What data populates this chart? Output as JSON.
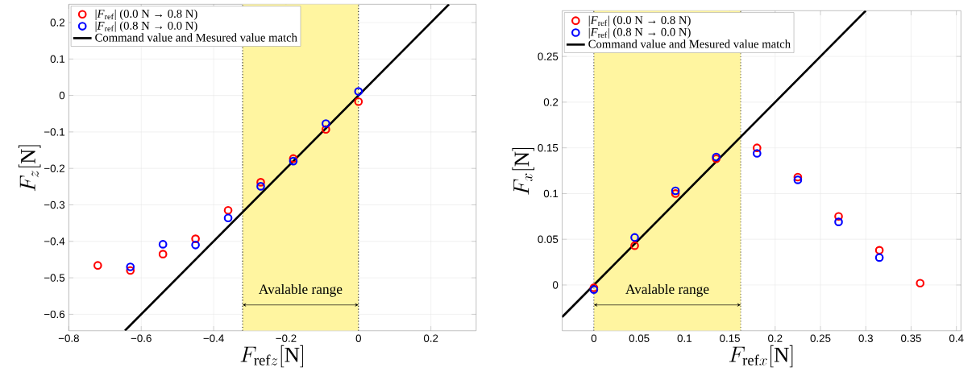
{
  "chart_data": [
    {
      "type": "scatter",
      "xlabel": "F_{\\mathrm{ref}z}[\\mathrm{N}]",
      "ylabel": "F_{z}[\\mathrm{N}]",
      "xlim": [
        -0.8,
        0.325
      ],
      "ylim": [
        -0.645,
        0.25
      ],
      "xticks": [
        {
          "value": -0.8,
          "label": "−0.8"
        },
        {
          "value": -0.6,
          "label": "−0.6"
        },
        {
          "value": -0.4,
          "label": "−0.4"
        },
        {
          "value": -0.2,
          "label": "−0.2"
        },
        0,
        0.2
      ],
      "yticks": [
        {
          "value": -0.6,
          "label": "−0.6"
        },
        {
          "value": -0.5,
          "label": "−0.5"
        },
        {
          "value": -0.4,
          "label": "−0.4"
        },
        {
          "value": -0.3,
          "label": "−0.3"
        },
        {
          "value": -0.2,
          "label": "−0.2"
        },
        {
          "value": -0.1,
          "label": "−0.1"
        },
        0,
        0.1,
        0.2
      ],
      "grid": true,
      "legend": "top left",
      "bands": [
        {
          "axis": "x",
          "from": -0.32,
          "to": 0,
          "label": "Avalable range",
          "color": "#fff5a0"
        }
      ],
      "ref_lines": [
        {
          "axis": "x",
          "value": -0.32,
          "line_style": "dotted",
          "color": "#000000"
        },
        {
          "axis": "x",
          "value": 0,
          "line_style": "dotted",
          "color": "#000000"
        }
      ],
      "series": [
        {
          "name": "|*F*$_{ref}$| (0.0 N → 0.8 N)",
          "marker": "circle",
          "color": "#ff0000",
          "x": [
            -0.72,
            -0.63,
            -0.54,
            -0.45,
            -0.36,
            -0.27,
            -0.18,
            -0.09,
            0
          ],
          "values": [
            -0.466,
            -0.48,
            -0.435,
            -0.393,
            -0.315,
            -0.238,
            -0.173,
            -0.093,
            -0.017
          ]
        },
        {
          "name": "|*F*$_{ref}$| (0.8 N → 0.0 N)",
          "marker": "circle",
          "color": "#0000ff",
          "x": [
            -0.63,
            -0.54,
            -0.45,
            -0.36,
            -0.27,
            -0.18,
            -0.09,
            0
          ],
          "values": [
            -0.47,
            -0.408,
            -0.41,
            -0.336,
            -0.249,
            -0.18,
            -0.077,
            0.011
          ]
        },
        {
          "name": "Command value and Mesured value match",
          "type": "line",
          "marker": "none",
          "color": "#000000",
          "x": [
            -0.645,
            0.25
          ],
          "values": [
            -0.645,
            0.25
          ]
        }
      ]
    },
    {
      "type": "scatter",
      "xlabel": "F_{\\mathrm{ref}x}[\\mathrm{N}]",
      "ylabel": "F_{x}[\\mathrm{N}]",
      "xlim": [
        -0.035,
        0.405
      ],
      "ylim": [
        -0.05,
        0.3
      ],
      "xticks": [
        0,
        0.05,
        0.1,
        0.15,
        0.2,
        0.25,
        0.3,
        0.35,
        0.4
      ],
      "yticks": [
        0,
        0.05,
        0.1,
        0.15,
        0.2,
        0.25
      ],
      "grid": true,
      "legend": "top left",
      "bands": [
        {
          "axis": "x",
          "from": 0,
          "to": 0.162,
          "label": "Avalable range",
          "color": "#fff5a0"
        }
      ],
      "ref_lines": [
        {
          "axis": "x",
          "value": 0,
          "line_style": "dotted",
          "color": "#000000"
        },
        {
          "axis": "x",
          "value": 0.162,
          "line_style": "dotted",
          "color": "#000000"
        }
      ],
      "series": [
        {
          "name": "|*F*$_{ref}$| (0.0 N → 0.8 N)",
          "marker": "circle",
          "color": "#ff0000",
          "x": [
            0,
            0.045,
            0.09,
            0.135,
            0.18,
            0.225,
            0.27,
            0.315,
            0.36
          ],
          "values": [
            -0.003,
            0.043,
            0.1,
            0.138,
            0.15,
            0.118,
            0.075,
            0.038,
            0.002
          ]
        },
        {
          "name": "|*F*$_{ref}$| (0.8 N → 0.0 N)",
          "marker": "circle",
          "color": "#0000ff",
          "x": [
            0,
            0.045,
            0.09,
            0.135,
            0.18,
            0.225,
            0.27,
            0.315
          ],
          "values": [
            -0.005,
            0.052,
            0.103,
            0.14,
            0.144,
            0.115,
            0.069,
            0.03
          ]
        },
        {
          "name": "Command value and Mesured value match",
          "type": "line",
          "marker": "none",
          "color": "#000000",
          "x": [
            -0.035,
            0.3
          ],
          "values": [
            -0.035,
            0.3
          ]
        }
      ]
    }
  ]
}
